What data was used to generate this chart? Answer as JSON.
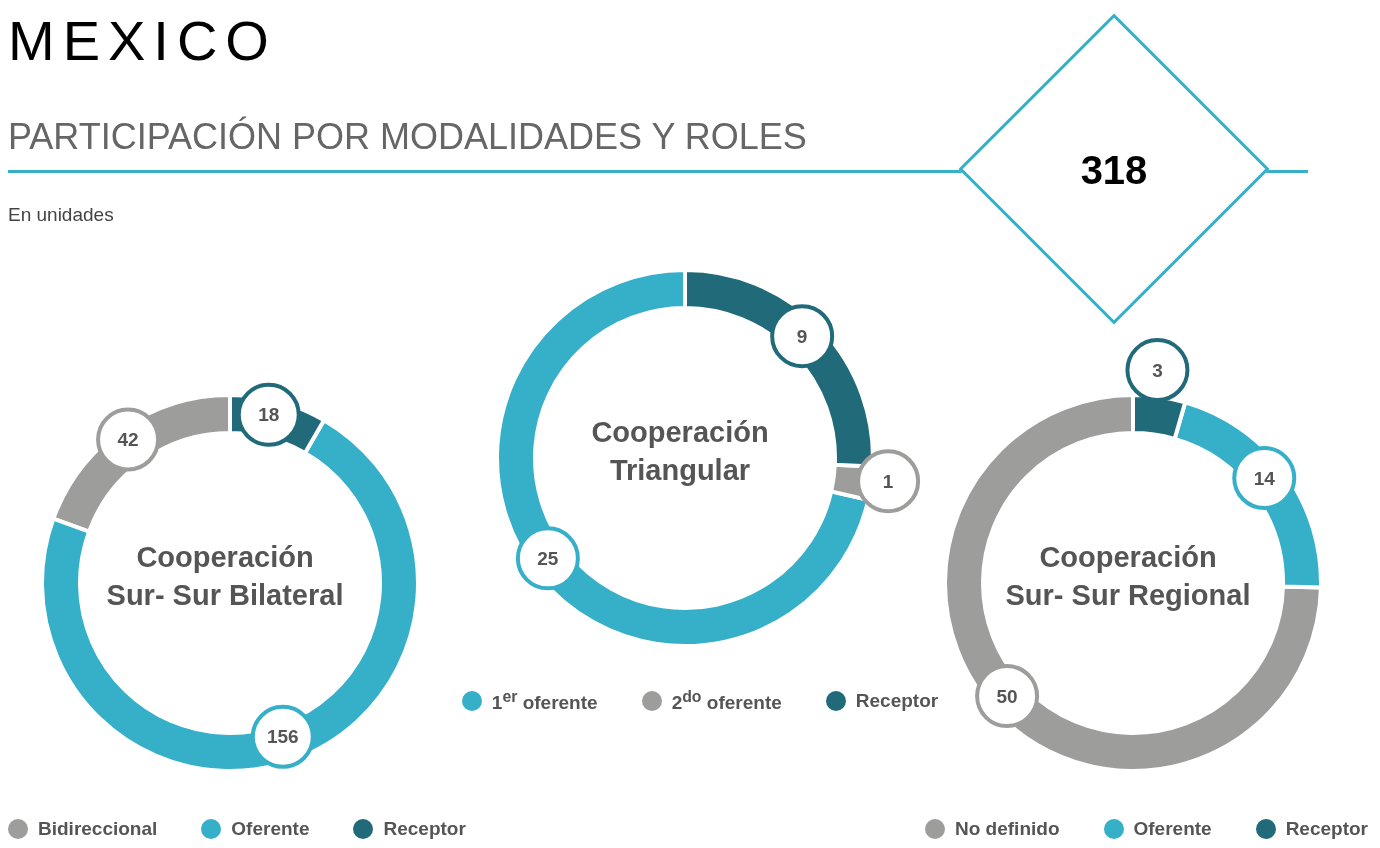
{
  "chart_data": [
    {
      "type": "other",
      "title": "PARTICIPACIÓN POR MODALIDADES Y ROLES",
      "subtitle": "En unidades",
      "annotations": [
        "MEXICO",
        "318"
      ]
    },
    {
      "type": "donut",
      "title": "Cooperación Sur- Sur Bilateral",
      "categories": [
        "Bidireccional",
        "Oferente",
        "Receptor"
      ],
      "values": [
        42,
        156,
        18
      ],
      "colors": [
        "#9d9d9c",
        "#36afc9",
        "#216a7a"
      ],
      "data_labels": true,
      "legend": "bottom"
    },
    {
      "type": "donut",
      "title": "Cooperación Triangular",
      "categories": [
        "1$^{er}$ oferente",
        "2$^{do}$ oferente",
        "Receptor"
      ],
      "values": [
        25,
        1,
        9
      ],
      "colors": [
        "#36afc9",
        "#9d9d9c",
        "#216a7a"
      ],
      "data_labels": true,
      "legend": "bottom"
    },
    {
      "type": "donut",
      "title": "Cooperación Sur- Sur Regional",
      "categories": [
        "No definido",
        "Oferente",
        "Receptor"
      ],
      "values": [
        50,
        14,
        3
      ],
      "colors": [
        "#9d9d9c",
        "#36afc9",
        "#216a7a"
      ],
      "data_labels": true,
      "legend": "bottom"
    }
  ]
}
